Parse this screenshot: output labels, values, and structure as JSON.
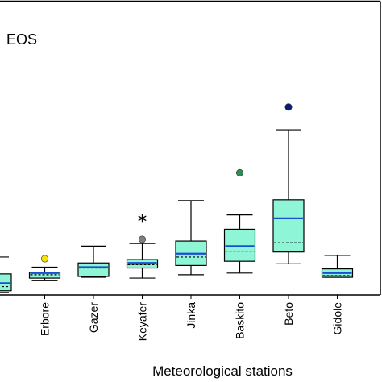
{
  "chart_data": {
    "type": "boxplot",
    "panel_label": "EOS",
    "xlabel": "Meteorological stations",
    "ylabel": "",
    "ylim": [
      0,
      350
    ],
    "grid": false,
    "box_color": "#8ef5d6",
    "median_style": "dashed",
    "mean_color": "#1a4fd6",
    "stations": [
      {
        "name": "",
        "whisker_low": 3,
        "q1": 5,
        "median": 10,
        "mean": 14,
        "q3": 25,
        "whisker_high": 45,
        "outliers": []
      },
      {
        "name": "Erbore",
        "whisker_low": 17,
        "q1": 20,
        "median": 24,
        "mean": 26,
        "q3": 27,
        "whisker_high": 33,
        "outliers": [
          {
            "value": 43,
            "marker": "circle",
            "color": "#f5e300"
          }
        ]
      },
      {
        "name": "Gazer",
        "whisker_low": 21,
        "q1": 22,
        "median": 32,
        "mean": 33,
        "q3": 38,
        "whisker_high": 58,
        "outliers": []
      },
      {
        "name": "Keyafer",
        "whisker_low": 20,
        "q1": 32,
        "median": 36,
        "mean": 38,
        "q3": 42,
        "whisker_high": 61,
        "outliers": [
          {
            "value": 66,
            "marker": "circle",
            "color": "#7f7f7f"
          },
          {
            "value": 91,
            "marker": "star",
            "color": "#000000"
          }
        ]
      },
      {
        "name": "Jinka",
        "whisker_low": 24,
        "q1": 35,
        "median": 45,
        "mean": 49,
        "q3": 64,
        "whisker_high": 112,
        "outliers": []
      },
      {
        "name": "Baskito",
        "whisker_low": 26,
        "q1": 40,
        "median": 52,
        "mean": 58,
        "q3": 78,
        "whisker_high": 95,
        "outliers": [
          {
            "value": 145,
            "marker": "circle",
            "color": "#2e8b57"
          }
        ]
      },
      {
        "name": "Beto",
        "whisker_low": 37,
        "q1": 51,
        "median": 62,
        "mean": 91,
        "q3": 113,
        "whisker_high": 196,
        "outliers": [
          {
            "value": 223,
            "marker": "circle",
            "color": "#0a1a7a"
          }
        ]
      },
      {
        "name": "Gidole",
        "whisker_low": 21,
        "q1": 21,
        "median": 23,
        "mean": 26,
        "q3": 31,
        "whisker_high": 47,
        "outliers": []
      }
    ]
  }
}
